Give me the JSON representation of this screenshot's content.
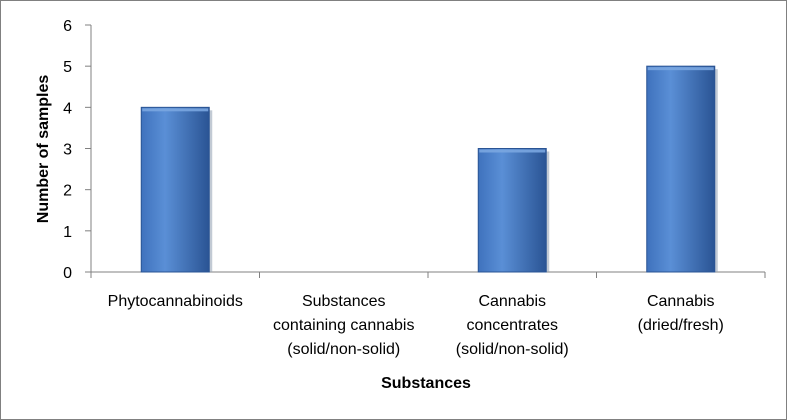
{
  "chart_data": {
    "type": "bar",
    "title": "",
    "xlabel": "Substances",
    "ylabel": "Number of samples",
    "categories": [
      [
        "Phytocannabinoids"
      ],
      [
        "Substances",
        "containing cannabis",
        "(solid/non-solid)"
      ],
      [
        "Cannabis",
        "concentrates",
        "(solid/non-solid)"
      ],
      [
        "Cannabis",
        "(dried/fresh)"
      ]
    ],
    "values": [
      4,
      0,
      3,
      5
    ],
    "ylim": [
      0,
      6
    ],
    "yticks": [
      0,
      1,
      2,
      3,
      4,
      5,
      6
    ],
    "grid": false,
    "legend": "none",
    "colors": {
      "bar_light": "#5a8fd6",
      "bar_mid": "#3f72bd",
      "bar_dark": "#2a5494",
      "bar_top": "#7aa6e0",
      "axis": "#808080"
    }
  }
}
